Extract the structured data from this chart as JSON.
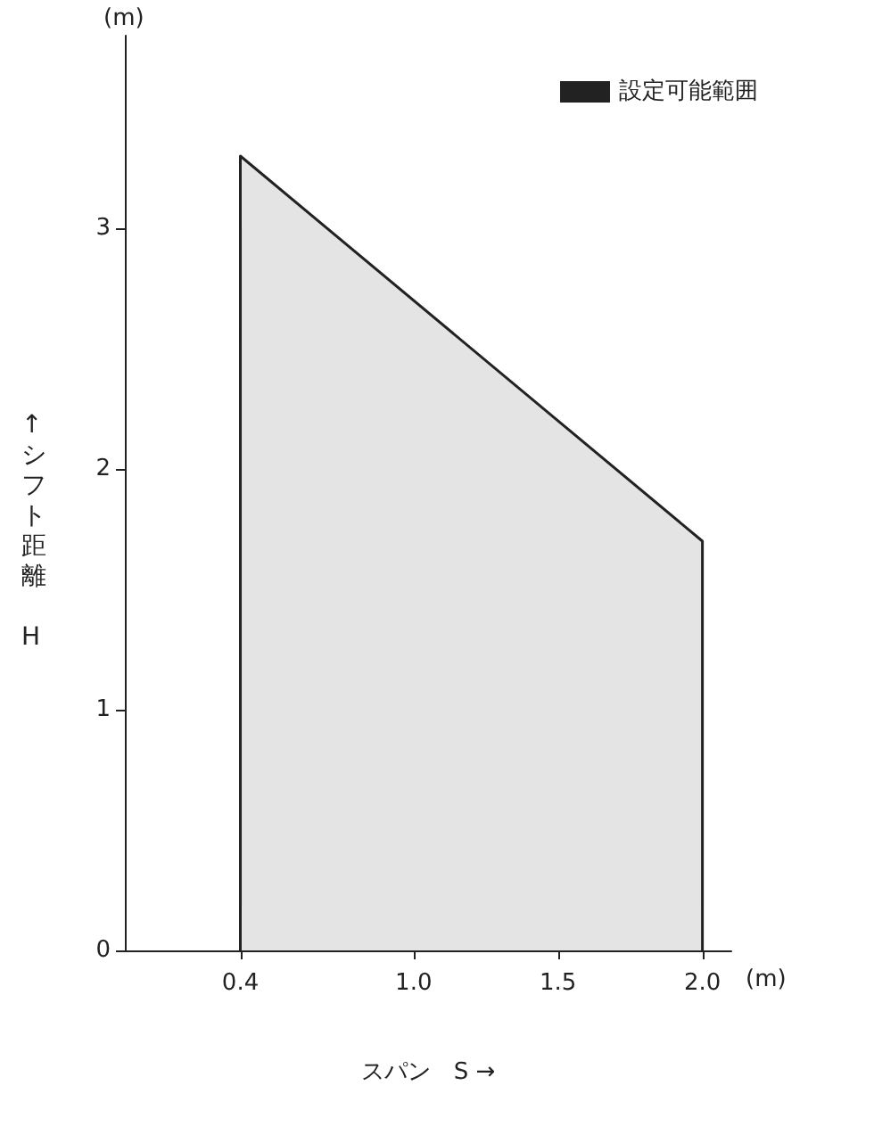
{
  "chart_data": {
    "type": "area",
    "xlabel": "スパン　S →",
    "ylabel": "↑シフト距離　H",
    "annotations": [
      "(m)",
      "(m)"
    ],
    "x": [
      0.4,
      2.0
    ],
    "series": [
      {
        "name": "設定可能範囲",
        "color": "#222222",
        "values": [
          3.3,
          1.7
        ]
      }
    ],
    "xlim": [
      0,
      2.1
    ],
    "xticks": [
      {
        "value": 0.4,
        "label": "0.4"
      },
      {
        "value": 1.0,
        "label": "1.0"
      },
      {
        "value": 1.5,
        "label": "1.5"
      },
      {
        "value": 2.0,
        "label": "2.0"
      }
    ],
    "ylim": [
      0,
      3.8
    ],
    "yticks": [
      0,
      1,
      2,
      3
    ],
    "grid": false,
    "legend": "top right",
    "marker": "none",
    "line_style": "solid"
  }
}
